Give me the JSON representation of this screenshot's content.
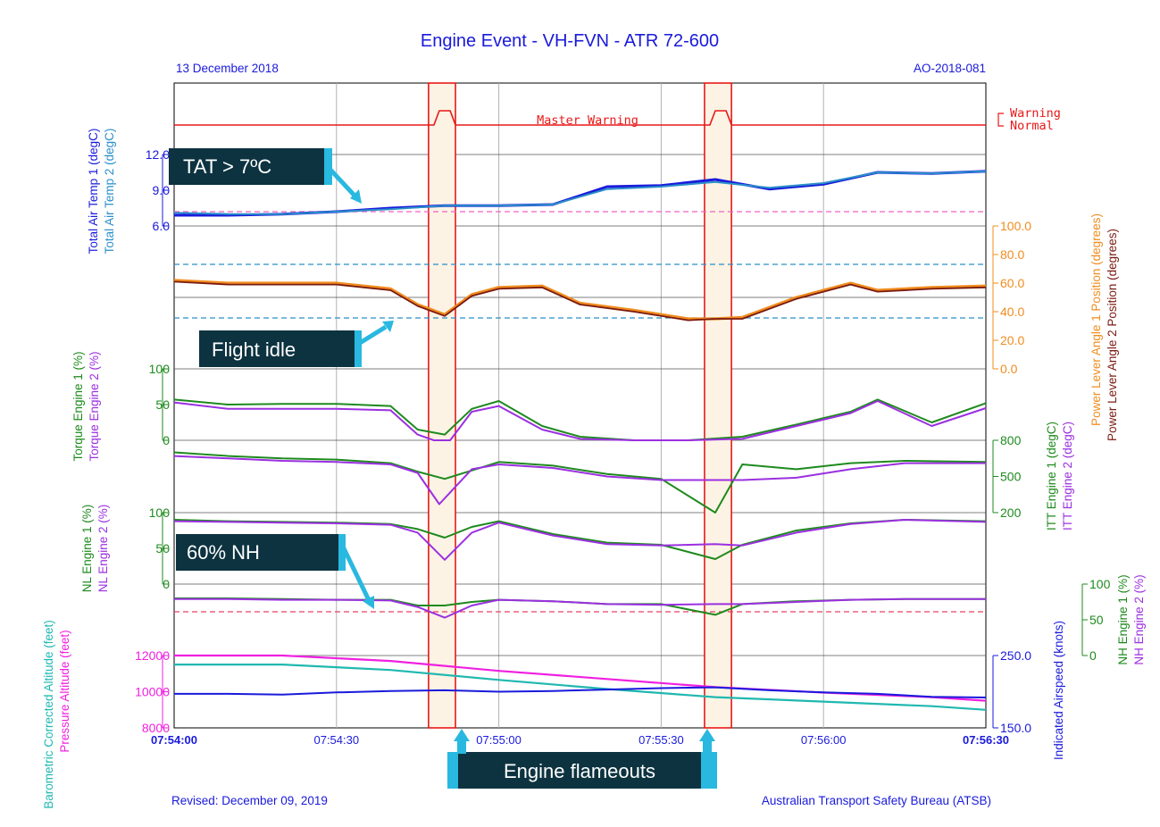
{
  "header": {
    "title": "Engine Event - VH-FVN -  ATR 72-600",
    "date": "13 December 2018",
    "ref": "AO-2018-081"
  },
  "footer": {
    "revised": "Revised: December 09, 2019",
    "agency": "Australian Transport Safety Bureau (ATSB)"
  },
  "annotations": {
    "tat": "TAT > 7ºC",
    "flight_idle": "Flight idle",
    "nh": "60% NH",
    "flameouts": "Engine flameouts"
  },
  "labels": {
    "master_warning": "Master Warning",
    "warning": "Warning",
    "normal": "Normal",
    "tat1": "Total Air Temp 1 (degC)",
    "tat2": "Total Air Temp 2 (degC)",
    "pla1": "Power Lever Angle 1 Position (degrees)",
    "pla2": "Power Lever Angle 2 Position (degrees)",
    "tq1": "Torque Engine 1 (%)",
    "tq2": "Torque Engine 2 (%)",
    "itt1": "ITT Engine 1 (degC)",
    "itt2": "ITT Engine 2 (degC)",
    "nl1": "NL Engine 1 (%)",
    "nl2": "NL Engine 2 (%)",
    "nh1": "NH Engine 1 (%)",
    "nh2": "NH Engine 2 (%)",
    "baro": "Barometric Corrected Altitude (feet)",
    "palt": "Pressure Altitude (feet)",
    "ias": "Indicated Airspeed (knots)"
  },
  "ticks": {
    "tat": [
      "12.0",
      "9.0",
      "6.0"
    ],
    "pla": [
      "100.0",
      "80.0",
      "60.0",
      "40.0",
      "20.0",
      "0.0"
    ],
    "tq": [
      "100",
      "50",
      "0"
    ],
    "itt": [
      "800",
      "500",
      "200"
    ],
    "nl": [
      "100",
      "50",
      "0"
    ],
    "nh": [
      "100",
      "50",
      "0"
    ],
    "alt": [
      "12000",
      "10000",
      "8000"
    ],
    "ias": [
      "250.0",
      "150.0"
    ],
    "time": [
      "07:54:00",
      "07:54:30",
      "07:55:00",
      "07:55:30",
      "07:56:00",
      "07:56:30"
    ]
  },
  "colors": {
    "tat1": "#1a1adc",
    "tat2": "#2a8fc8",
    "pla1": "#f08c1e",
    "pla2": "#7a1a10",
    "eng1": "#1e8a1e",
    "eng2": "#9b30e0",
    "warning": "#e81818",
    "baro": "#20b8b0",
    "palt": "#f020e0",
    "ias": "#1a1adc",
    "annotation_box": "#0d3340",
    "arrow": "#29b8e0"
  },
  "chart_data": {
    "type": "line",
    "x_unit": "time",
    "xlim": [
      "07:54:00",
      "07:56:30"
    ],
    "flameout_windows": [
      [
        "07:54:48",
        "07:54:51"
      ],
      [
        "07:55:39",
        "07:55:42"
      ]
    ],
    "series": [
      {
        "name": "Master Warning",
        "unit": "state",
        "x": [
          "07:54:00",
          "07:54:48",
          "07:54:49",
          "07:54:51",
          "07:54:52",
          "07:55:39",
          "07:55:40",
          "07:55:42",
          "07:55:43",
          "07:56:30"
        ],
        "values": [
          0,
          0,
          1,
          1,
          0,
          0,
          1,
          1,
          0,
          0
        ]
      },
      {
        "name": "Total Air Temp 1 (degC)",
        "unit": "degC",
        "x": [
          "07:54:00",
          "07:54:10",
          "07:54:20",
          "07:54:30",
          "07:54:40",
          "07:54:50",
          "07:55:00",
          "07:55:10",
          "07:55:20",
          "07:55:30",
          "07:55:40",
          "07:55:50",
          "07:56:00",
          "07:56:10",
          "07:56:20",
          "07:56:30"
        ],
        "values": [
          6.9,
          6.9,
          7.0,
          7.2,
          7.5,
          7.7,
          7.7,
          7.8,
          9.3,
          9.4,
          9.9,
          9.1,
          9.5,
          10.5,
          10.4,
          10.6
        ]
      },
      {
        "name": "Total Air Temp 2 (degC)",
        "unit": "degC",
        "x": [
          "07:54:00",
          "07:54:10",
          "07:54:20",
          "07:54:30",
          "07:54:40",
          "07:54:50",
          "07:55:00",
          "07:55:10",
          "07:55:20",
          "07:55:30",
          "07:55:40",
          "07:55:50",
          "07:56:00",
          "07:56:10",
          "07:56:20",
          "07:56:30"
        ],
        "values": [
          7.1,
          7.0,
          7.0,
          7.2,
          7.4,
          7.7,
          7.7,
          7.8,
          9.1,
          9.3,
          9.7,
          9.2,
          9.6,
          10.5,
          10.4,
          10.6
        ]
      },
      {
        "name": "Power Lever Angle 1 Position (degrees)",
        "unit": "degrees",
        "x": [
          "07:54:00",
          "07:54:10",
          "07:54:20",
          "07:54:30",
          "07:54:40",
          "07:54:45",
          "07:54:50",
          "07:54:55",
          "07:55:00",
          "07:55:08",
          "07:55:15",
          "07:55:25",
          "07:55:35",
          "07:55:40",
          "07:55:45",
          "07:55:55",
          "07:56:05",
          "07:56:10",
          "07:56:20",
          "07:56:30"
        ],
        "values": [
          62,
          60,
          60,
          60,
          56,
          45,
          38,
          52,
          57,
          58,
          46,
          41,
          35,
          35,
          36,
          50,
          60,
          55,
          57,
          58
        ]
      },
      {
        "name": "Power Lever Angle 2 Position (degrees)",
        "unit": "degrees",
        "x": [
          "07:54:00",
          "07:54:10",
          "07:54:20",
          "07:54:30",
          "07:54:40",
          "07:54:45",
          "07:54:50",
          "07:54:55",
          "07:55:00",
          "07:55:08",
          "07:55:15",
          "07:55:25",
          "07:55:35",
          "07:55:40",
          "07:55:45",
          "07:55:55",
          "07:56:05",
          "07:56:10",
          "07:56:20",
          "07:56:30"
        ],
        "values": [
          61,
          59,
          59,
          59,
          55,
          44,
          37,
          51,
          56,
          57,
          45,
          40,
          34,
          35,
          35,
          49,
          59,
          54,
          56,
          57
        ]
      },
      {
        "name": "Torque Engine 1 (%)",
        "unit": "%",
        "x": [
          "07:54:00",
          "07:54:10",
          "07:54:20",
          "07:54:30",
          "07:54:40",
          "07:54:45",
          "07:54:50",
          "07:54:55",
          "07:55:00",
          "07:55:08",
          "07:55:15",
          "07:55:25",
          "07:55:35",
          "07:55:45",
          "07:55:55",
          "07:56:05",
          "07:56:10",
          "07:56:20",
          "07:56:30"
        ],
        "values": [
          57,
          50,
          51,
          51,
          48,
          15,
          8,
          44,
          55,
          20,
          5,
          0,
          0,
          5,
          22,
          40,
          57,
          25,
          52
        ]
      },
      {
        "name": "Torque Engine 2 (%)",
        "unit": "%",
        "x": [
          "07:54:00",
          "07:54:10",
          "07:54:20",
          "07:54:30",
          "07:54:40",
          "07:54:45",
          "07:54:48",
          "07:54:51",
          "07:54:55",
          "07:55:00",
          "07:55:08",
          "07:55:15",
          "07:55:25",
          "07:55:35",
          "07:55:45",
          "07:55:55",
          "07:56:05",
          "07:56:10",
          "07:56:20",
          "07:56:30"
        ],
        "values": [
          53,
          44,
          44,
          44,
          42,
          8,
          0,
          0,
          40,
          48,
          15,
          2,
          0,
          0,
          2,
          20,
          38,
          55,
          20,
          45
        ]
      },
      {
        "name": "ITT Engine 1 (degC)",
        "unit": "degC",
        "x": [
          "07:54:00",
          "07:54:10",
          "07:54:20",
          "07:54:30",
          "07:54:40",
          "07:54:45",
          "07:54:50",
          "07:54:55",
          "07:55:00",
          "07:55:10",
          "07:55:20",
          "07:55:30",
          "07:55:40",
          "07:55:45",
          "07:55:55",
          "07:56:05",
          "07:56:15",
          "07:56:30"
        ],
        "values": [
          700,
          670,
          650,
          640,
          610,
          540,
          480,
          550,
          620,
          590,
          520,
          480,
          200,
          600,
          560,
          610,
          630,
          620
        ]
      },
      {
        "name": "ITT Engine 2 (degC)",
        "unit": "degC",
        "x": [
          "07:54:00",
          "07:54:10",
          "07:54:20",
          "07:54:30",
          "07:54:40",
          "07:54:45",
          "07:54:49",
          "07:54:55",
          "07:55:00",
          "07:55:10",
          "07:55:20",
          "07:55:30",
          "07:55:40",
          "07:55:45",
          "07:55:55",
          "07:56:05",
          "07:56:15",
          "07:56:30"
        ],
        "values": [
          670,
          650,
          630,
          620,
          600,
          530,
          270,
          560,
          600,
          570,
          500,
          470,
          470,
          470,
          490,
          560,
          610,
          610
        ]
      },
      {
        "name": "NL Engine 1 (%)",
        "unit": "%",
        "x": [
          "07:54:00",
          "07:54:10",
          "07:54:20",
          "07:54:30",
          "07:54:40",
          "07:54:45",
          "07:54:50",
          "07:54:55",
          "07:55:00",
          "07:55:10",
          "07:55:20",
          "07:55:30",
          "07:55:40",
          "07:55:45",
          "07:55:55",
          "07:56:05",
          "07:56:15",
          "07:56:30"
        ],
        "values": [
          90,
          88,
          87,
          86,
          84,
          77,
          65,
          80,
          88,
          70,
          58,
          55,
          35,
          55,
          75,
          85,
          90,
          88
        ]
      },
      {
        "name": "NL Engine 2 (%)",
        "unit": "%",
        "x": [
          "07:54:00",
          "07:54:10",
          "07:54:20",
          "07:54:30",
          "07:54:40",
          "07:54:45",
          "07:54:50",
          "07:54:55",
          "07:55:00",
          "07:55:10",
          "07:55:20",
          "07:55:30",
          "07:55:40",
          "07:55:45",
          "07:55:55",
          "07:56:05",
          "07:56:15",
          "07:56:30"
        ],
        "values": [
          88,
          87,
          86,
          85,
          83,
          72,
          34,
          72,
          86,
          68,
          56,
          54,
          56,
          54,
          72,
          84,
          90,
          87
        ]
      },
      {
        "name": "NH Engine 1 (%)",
        "unit": "%",
        "x": [
          "07:54:00",
          "07:54:10",
          "07:54:20",
          "07:54:30",
          "07:54:40",
          "07:54:45",
          "07:54:50",
          "07:54:55",
          "07:55:00",
          "07:55:10",
          "07:55:20",
          "07:55:30",
          "07:55:40",
          "07:55:45",
          "07:55:55",
          "07:56:05",
          "07:56:15",
          "07:56:30"
        ],
        "values": [
          80,
          80,
          79,
          78,
          78,
          70,
          70,
          75,
          78,
          76,
          72,
          72,
          57,
          72,
          76,
          78,
          79,
          79
        ]
      },
      {
        "name": "NH Engine 2 (%)",
        "unit": "%",
        "x": [
          "07:54:00",
          "07:54:10",
          "07:54:20",
          "07:54:30",
          "07:54:40",
          "07:54:45",
          "07:54:50",
          "07:54:55",
          "07:55:00",
          "07:55:10",
          "07:55:20",
          "07:55:30",
          "07:55:40",
          "07:55:45",
          "07:55:55",
          "07:56:05",
          "07:56:15",
          "07:56:30"
        ],
        "values": [
          79,
          79,
          78,
          78,
          77,
          68,
          53,
          70,
          78,
          76,
          72,
          71,
          72,
          72,
          75,
          78,
          79,
          79
        ]
      },
      {
        "name": "Pressure Altitude (feet)",
        "unit": "feet",
        "x": [
          "07:54:00",
          "07:54:20",
          "07:54:40",
          "07:55:00",
          "07:55:20",
          "07:55:40",
          "07:56:00",
          "07:56:20",
          "07:56:30"
        ],
        "values": [
          12000,
          12000,
          11700,
          11150,
          10700,
          10250,
          9950,
          9700,
          9500
        ]
      },
      {
        "name": "Barometric Corrected Altitude (feet)",
        "unit": "feet",
        "x": [
          "07:54:00",
          "07:54:20",
          "07:54:40",
          "07:55:00",
          "07:55:20",
          "07:55:40",
          "07:56:00",
          "07:56:20",
          "07:56:30"
        ],
        "values": [
          11500,
          11500,
          11200,
          10650,
          10150,
          9700,
          9450,
          9200,
          9000
        ]
      },
      {
        "name": "Indicated Airspeed (knots)",
        "unit": "knots",
        "x": [
          "07:54:00",
          "07:54:10",
          "07:54:20",
          "07:54:30",
          "07:54:40",
          "07:54:50",
          "07:55:00",
          "07:55:10",
          "07:55:20",
          "07:55:30",
          "07:55:40",
          "07:55:50",
          "07:56:00",
          "07:56:10",
          "07:56:20",
          "07:56:30"
        ],
        "values": [
          197,
          197,
          196,
          199,
          201,
          202,
          200,
          201,
          203,
          205,
          206,
          202,
          199,
          197,
          193,
          192
        ]
      }
    ]
  }
}
